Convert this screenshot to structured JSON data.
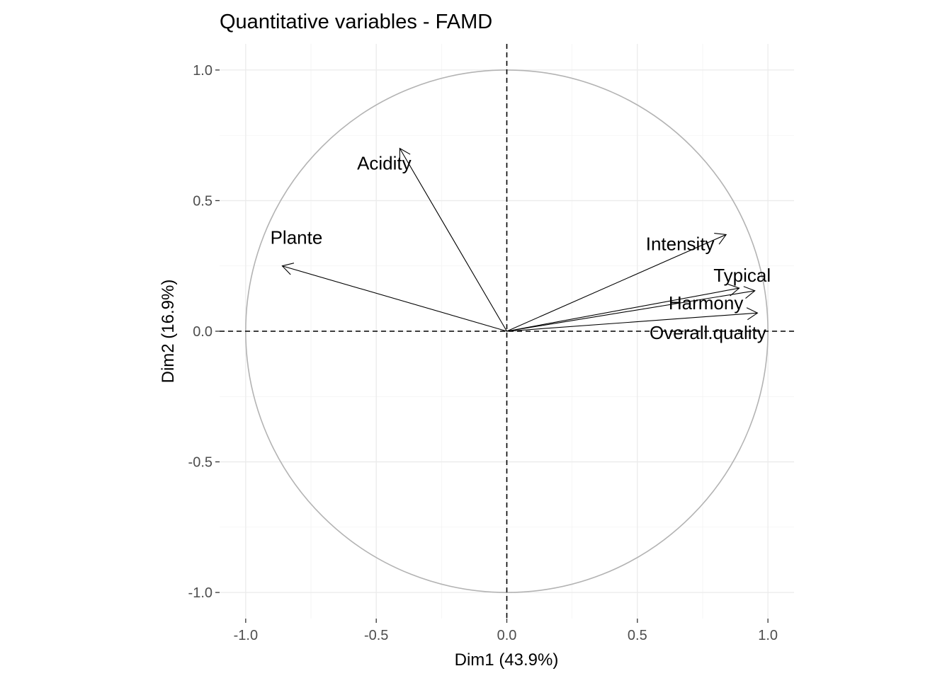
{
  "chart_data": {
    "type": "scatter",
    "subtype": "correlation-circle",
    "title": "Quantitative variables - FAMD",
    "xlabel": "Dim1 (43.9%)",
    "ylabel": "Dim2 (16.9%)",
    "xlim": [
      -1.1,
      1.1
    ],
    "ylim": [
      -1.1,
      1.1
    ],
    "x_ticks": [
      -1.0,
      -0.5,
      0.0,
      0.5,
      1.0
    ],
    "y_ticks": [
      -1.0,
      -0.5,
      0.0,
      0.5,
      1.0
    ],
    "x_tick_labels": [
      "-1.0",
      "-0.5",
      "0.0",
      "0.5",
      "1.0"
    ],
    "y_tick_labels": [
      "-1.0",
      "-0.5",
      "0.0",
      "0.5",
      "1.0"
    ],
    "grid": true,
    "unit_circle": true,
    "reference_lines": {
      "x": 0,
      "y": 0,
      "style": "dashed"
    },
    "variables": [
      {
        "name": "Acidity",
        "x": -0.41,
        "y": 0.7
      },
      {
        "name": "Plante",
        "x": -0.86,
        "y": 0.25
      },
      {
        "name": "Intensity",
        "x": 0.84,
        "y": 0.37
      },
      {
        "name": "Typical",
        "x": 0.95,
        "y": 0.155
      },
      {
        "name": "Harmony",
        "x": 0.89,
        "y": 0.165
      },
      {
        "name": "Overall.quality",
        "x": 0.96,
        "y": 0.07
      }
    ],
    "colors": {
      "arrows": "#000000",
      "circle": "#b3b3b3",
      "grid": "#ebebeb",
      "tick_labels": "#4d4d4d"
    }
  }
}
